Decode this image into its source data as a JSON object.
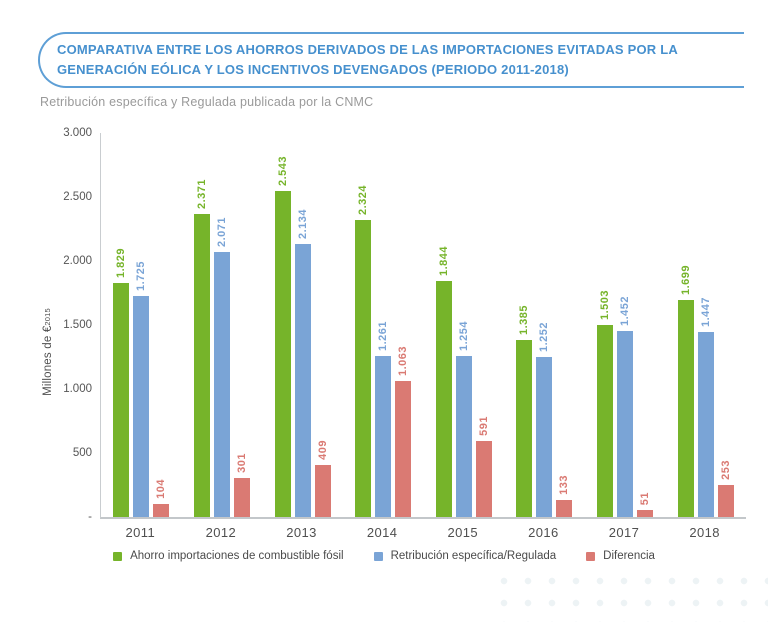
{
  "header": {
    "title": "COMPARATIVA ENTRE LOS AHORROS DERIVADOS DE LAS IMPORTACIONES EVITADAS POR LA GENERACIÓN EÓLICA Y LOS INCENTIVOS DEVENGADOS (PERIODO 2011-2018)",
    "subtitle": "Retribución específica y Regulada publicada por la CNMC"
  },
  "colors": {
    "title_text": "#4690ce",
    "title_border": "#5e9fd6",
    "subtitle_text": "#9a9a9a",
    "axis_line": "#c3c7ca",
    "tick_text": "#555555",
    "legend_text": "#4a4a4a",
    "series_green": "#76b42a",
    "series_blue": "#7aa4d6",
    "series_red": "#da7a73"
  },
  "chart_data": {
    "type": "bar",
    "title": "Comparativa entre los ahorros derivados de las importaciones evitadas por la generación eólica y los incentivos devengados (Periodo 2011-2018)",
    "categories": [
      "2011",
      "2012",
      "2013",
      "2014",
      "2015",
      "2016",
      "2017",
      "2018"
    ],
    "series": [
      {
        "name": "Ahorro importaciones de combustible fósil",
        "color": "#76b42a",
        "values": [
          1829,
          2371,
          2543,
          2324,
          1844,
          1385,
          1503,
          1699
        ],
        "value_labels": [
          "1.829",
          "2.371",
          "2.543",
          "2.324",
          "1.844",
          "1.385",
          "1.503",
          "1.699"
        ]
      },
      {
        "name": "Retribución específica/Regulada",
        "color": "#7aa4d6",
        "values": [
          1725,
          2071,
          2134,
          1261,
          1254,
          1252,
          1452,
          1447
        ],
        "value_labels": [
          "1.725",
          "2.071",
          "2.134",
          "1.261",
          "1.254",
          "1.252",
          "1.452",
          "1.447"
        ]
      },
      {
        "name": "Diferencia",
        "color": "#da7a73",
        "values": [
          104,
          301,
          409,
          1063,
          591,
          133,
          51,
          253
        ],
        "value_labels": [
          "104",
          "301",
          "409",
          "1.063",
          "591",
          "133",
          "51",
          "253"
        ]
      }
    ],
    "xlabel": "",
    "ylabel": "Millones de €",
    "ylabel_subscript": "2015",
    "ylim": [
      0,
      3000
    ],
    "y_ticks": [
      {
        "value": 3000,
        "label": "3.000"
      },
      {
        "value": 2500,
        "label": "2.500"
      },
      {
        "value": 2000,
        "label": "2.000"
      },
      {
        "value": 1500,
        "label": "1.500"
      },
      {
        "value": 1000,
        "label": "1.000"
      },
      {
        "value": 500,
        "label": "500"
      },
      {
        "value": 0,
        "label": "-"
      }
    ],
    "grid": false,
    "legend_position": "bottom",
    "bar_value_labels_rotated": true
  }
}
